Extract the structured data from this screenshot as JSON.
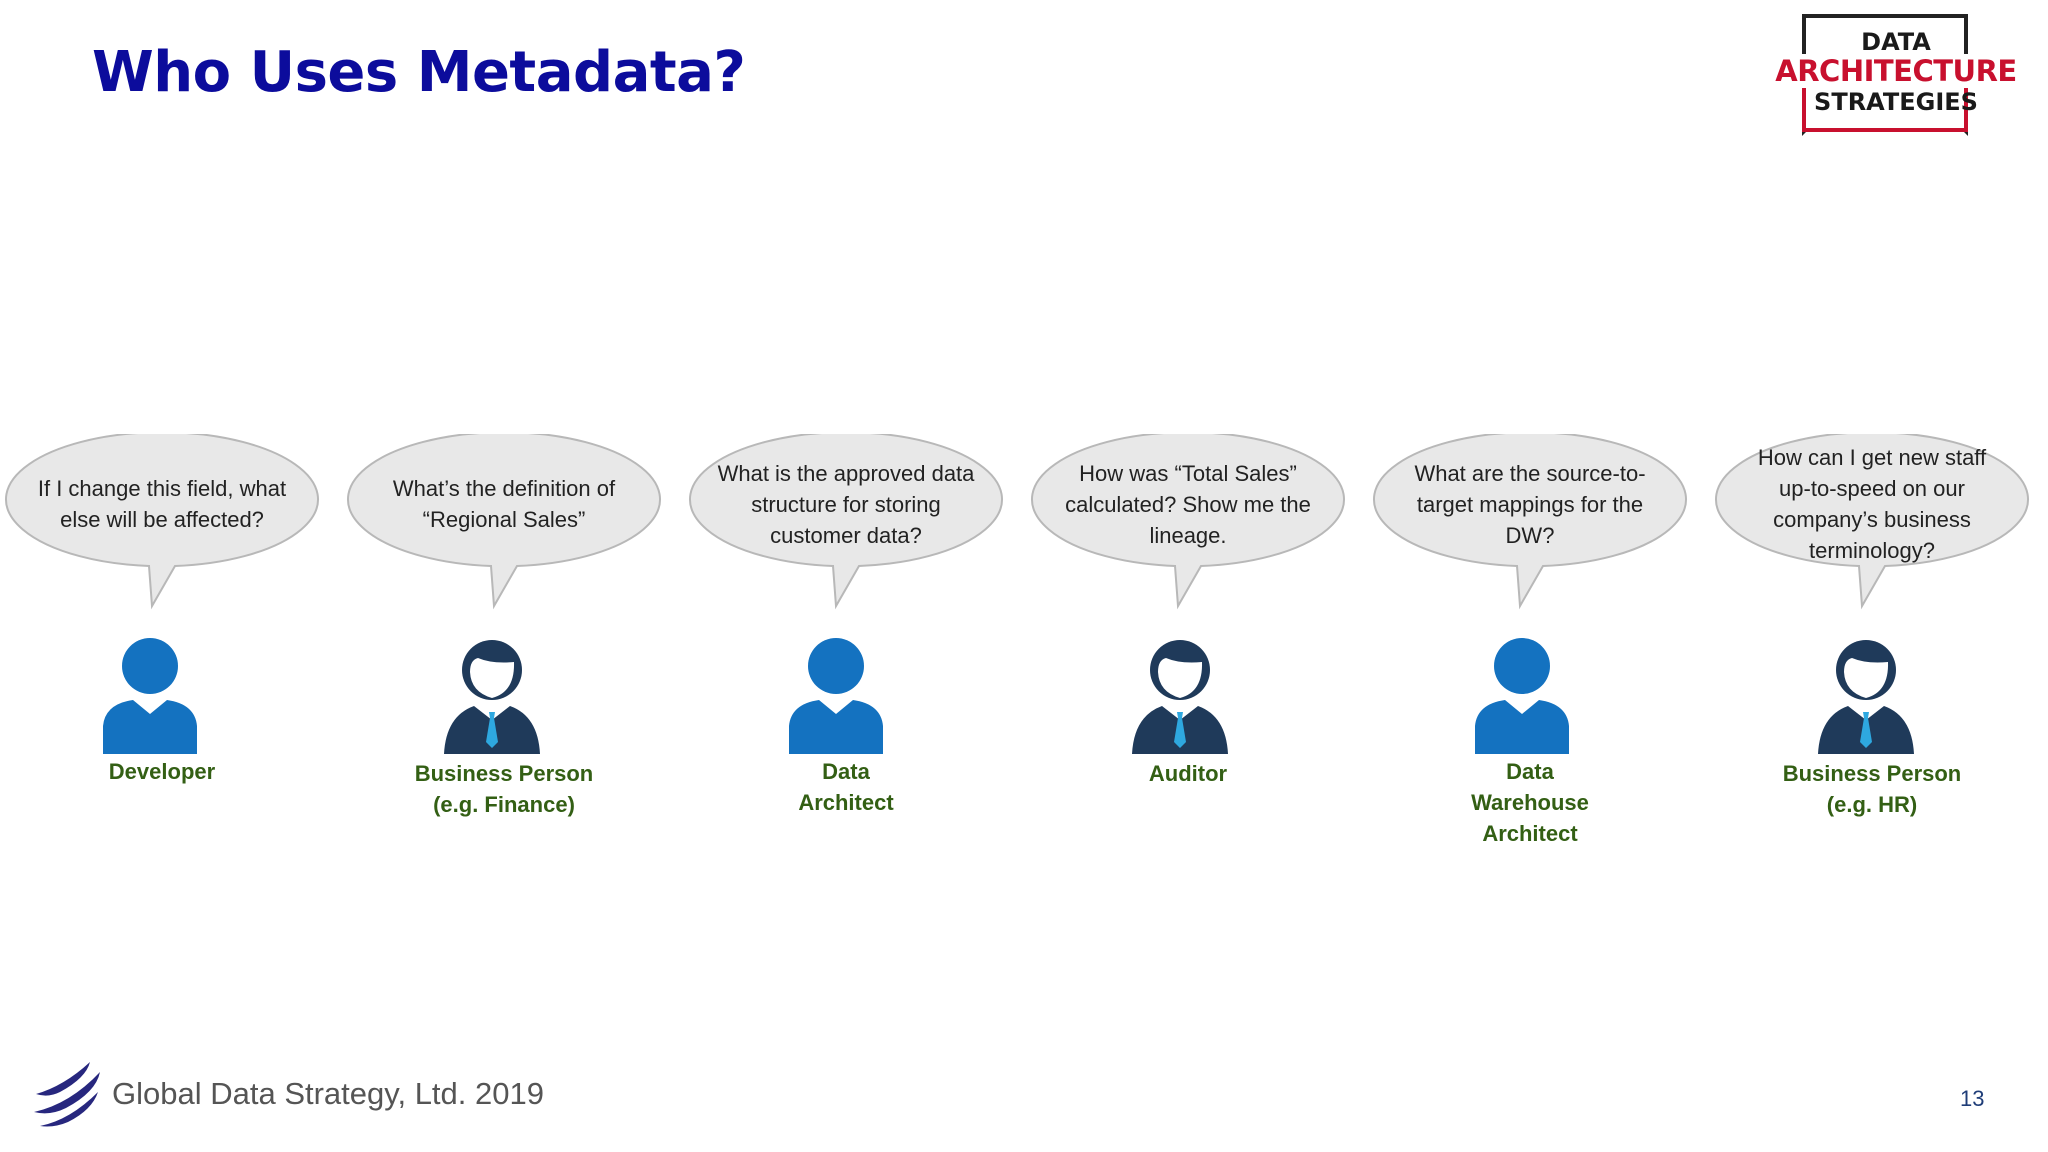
{
  "slide": {
    "title": "Who Uses Metadata?",
    "page_number": "13"
  },
  "logo": {
    "line1": "DATA",
    "line2": "ARCHITECTURE",
    "line3": "STRATEGIES",
    "frame_color": "#222222",
    "accent_color": "#c8102e"
  },
  "footer": {
    "company": "Global Data Strategy, Ltd. 2019",
    "logo_icon": "global-data-strategy-logo-icon"
  },
  "colors": {
    "title": "#0c0c9c",
    "role_label": "#335f14",
    "bubble_fill": "#e8e8e8",
    "bubble_stroke": "#b8b8b8",
    "avatar_blue": "#1472c0",
    "avatar_navy": "#1f3a5a",
    "tie": "#2ea8e0"
  },
  "personas": [
    {
      "question": "If I change this field, what else will be affected?",
      "role_lines": [
        "Developer"
      ],
      "icon": "user-silhouette-icon"
    },
    {
      "question": "What’s the definition of “Regional Sales”",
      "role_lines": [
        "Business Person",
        "(e.g. Finance)"
      ],
      "icon": "businessman-icon"
    },
    {
      "question": "What is the approved data structure for storing customer data?",
      "role_lines": [
        "Data",
        "Architect"
      ],
      "icon": "user-silhouette-icon"
    },
    {
      "question": "How was “Total Sales” calculated? Show me the lineage.",
      "role_lines": [
        "Auditor"
      ],
      "icon": "businessman-icon"
    },
    {
      "question": "What are the source-to-target mappings for the DW?",
      "role_lines": [
        "Data",
        "Warehouse",
        "Architect"
      ],
      "icon": "user-silhouette-icon"
    },
    {
      "question": "How can I get new staff up-to-speed on our company’s business terminology?",
      "role_lines": [
        "Business Person",
        "(e.g. HR)"
      ],
      "icon": "businessman-icon"
    }
  ]
}
